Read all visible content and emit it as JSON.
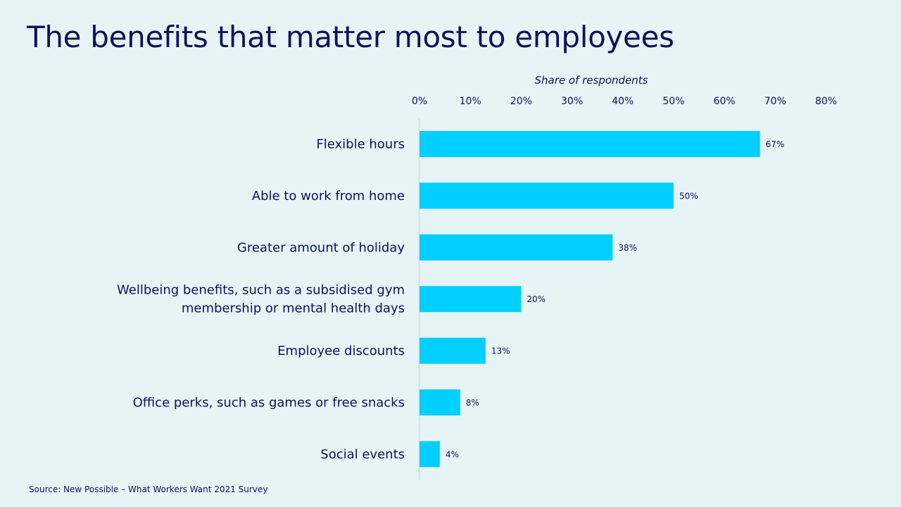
{
  "title": "The benefits that matter most to employees",
  "source": "Source: New Possible – What Workers Want 2021 Survey",
  "colors": {
    "background": "#e6f4f5",
    "bar": "#00cfff",
    "text": "#0c1457",
    "axis_line": "#cfdde0"
  },
  "chart_data": {
    "type": "bar",
    "orientation": "horizontal",
    "title": "",
    "xlabel": "Share of respondents",
    "ylabel": "",
    "xlim": [
      0,
      80
    ],
    "x_ticks": [
      "0%",
      "10%",
      "20%",
      "30%",
      "40%",
      "50%",
      "60%",
      "70%",
      "80%"
    ],
    "x_axis_position": "top",
    "grid": false,
    "categories": [
      "Flexible hours",
      "Able to work from home",
      "Greater amount of holiday",
      "Wellbeing benefits, such as a subsidised gym membership or mental health days",
      "Employee discounts",
      "Office perks, such as games or free snacks",
      "Social events"
    ],
    "category_label_lines": [
      [
        "Flexible hours"
      ],
      [
        "Able to work from home"
      ],
      [
        "Greater amount of holiday"
      ],
      [
        "Wellbeing benefits, such as a subsidised gym",
        "membership or mental health days"
      ],
      [
        "Employee discounts"
      ],
      [
        "Office perks, such as games or free snacks"
      ],
      [
        "Social events"
      ]
    ],
    "values": [
      67,
      50,
      38,
      20,
      13,
      8,
      4
    ],
    "data_labels": [
      "67%",
      "50%",
      "38%",
      "20%",
      "13%",
      "8%",
      "4%"
    ]
  }
}
